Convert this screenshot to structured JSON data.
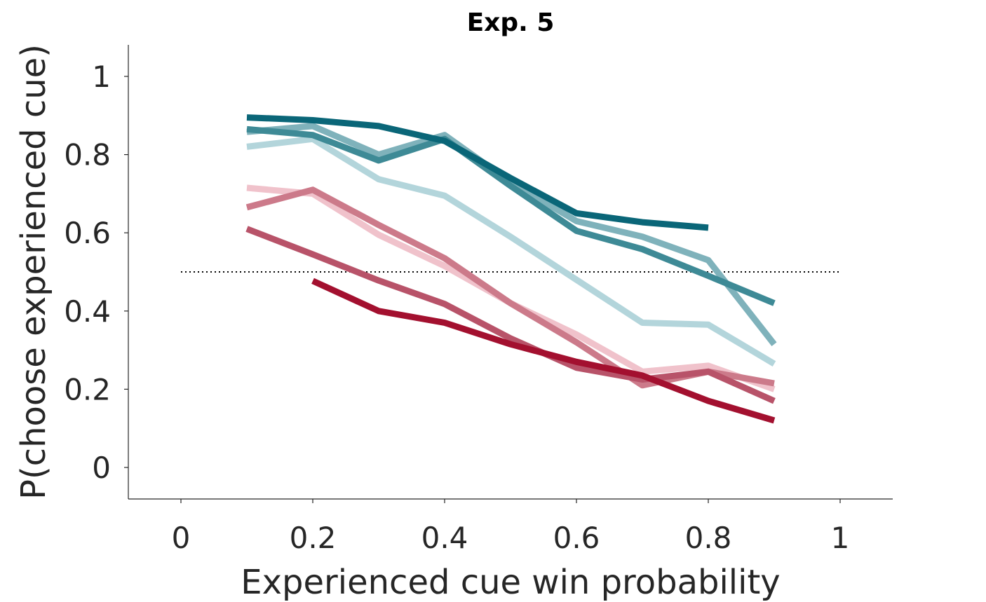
{
  "chart_data": {
    "type": "line",
    "title": "Exp. 5",
    "xlabel": "Experienced cue win probability",
    "ylabel": "P(choose experienced cue)",
    "xlim": [
      -0.08,
      1.08
    ],
    "ylim": [
      -0.08,
      1.08
    ],
    "xticks": [
      0,
      0.2,
      0.4,
      0.6,
      0.8,
      1
    ],
    "xtick_labels": [
      "0",
      "0.2",
      "0.4",
      "0.6",
      "0.8",
      "1"
    ],
    "yticks": [
      0,
      0.2,
      0.4,
      0.6,
      0.8,
      1
    ],
    "ytick_labels": [
      "0",
      "0.2",
      "0.4",
      "0.6",
      "0.8",
      "1"
    ],
    "grid": false,
    "reference_line": {
      "y": 0.5,
      "x": [
        0,
        1
      ],
      "style": "dotted",
      "color": "#000000"
    },
    "series": [
      {
        "color": "#f0c2cb",
        "x": [
          0.1,
          0.2,
          0.3,
          0.4,
          0.5,
          0.6,
          0.7,
          0.8,
          0.9
        ],
        "y": [
          0.715,
          0.7,
          0.595,
          0.515,
          0.42,
          0.34,
          0.245,
          0.26,
          0.2
        ]
      },
      {
        "color": "#cc7a8a",
        "x": [
          0.1,
          0.2,
          0.3,
          0.4,
          0.5,
          0.6,
          0.7,
          0.8,
          0.9
        ],
        "y": [
          0.665,
          0.71,
          0.62,
          0.535,
          0.42,
          0.32,
          0.21,
          0.245,
          0.215
        ]
      },
      {
        "color": "#b85369",
        "x": [
          0.1,
          0.2,
          0.3,
          0.4,
          0.5,
          0.6,
          0.7,
          0.8,
          0.9
        ],
        "y": [
          0.61,
          0.545,
          0.478,
          0.418,
          0.33,
          0.255,
          0.225,
          0.245,
          0.17
        ]
      },
      {
        "color": "#a3102f",
        "x": [
          0.2,
          0.3,
          0.4,
          0.5,
          0.6,
          0.7,
          0.8,
          0.9
        ],
        "y": [
          0.477,
          0.4,
          0.37,
          0.315,
          0.27,
          0.235,
          0.17,
          0.12
        ]
      },
      {
        "color": "#b3d5db",
        "x": [
          0.1,
          0.2,
          0.3,
          0.4,
          0.5,
          0.6,
          0.7,
          0.8,
          0.9
        ],
        "y": [
          0.82,
          0.84,
          0.737,
          0.695,
          0.59,
          0.48,
          0.37,
          0.365,
          0.265
        ]
      },
      {
        "color": "#7fb2bb",
        "x": [
          0.1,
          0.2,
          0.3,
          0.4,
          0.5,
          0.6,
          0.7,
          0.8,
          0.9
        ],
        "y": [
          0.858,
          0.873,
          0.8,
          0.85,
          0.73,
          0.63,
          0.59,
          0.53,
          0.315
        ]
      },
      {
        "color": "#3e8a96",
        "x": [
          0.1,
          0.2,
          0.3,
          0.4,
          0.5,
          0.6,
          0.7,
          0.8,
          0.9
        ],
        "y": [
          0.865,
          0.85,
          0.785,
          0.84,
          0.72,
          0.605,
          0.558,
          0.49,
          0.42
        ]
      },
      {
        "color": "#0a6678",
        "x": [
          0.1,
          0.2,
          0.3,
          0.4,
          0.5,
          0.6,
          0.7,
          0.8
        ],
        "y": [
          0.895,
          0.888,
          0.873,
          0.835,
          0.74,
          0.65,
          0.627,
          0.613
        ]
      }
    ]
  }
}
